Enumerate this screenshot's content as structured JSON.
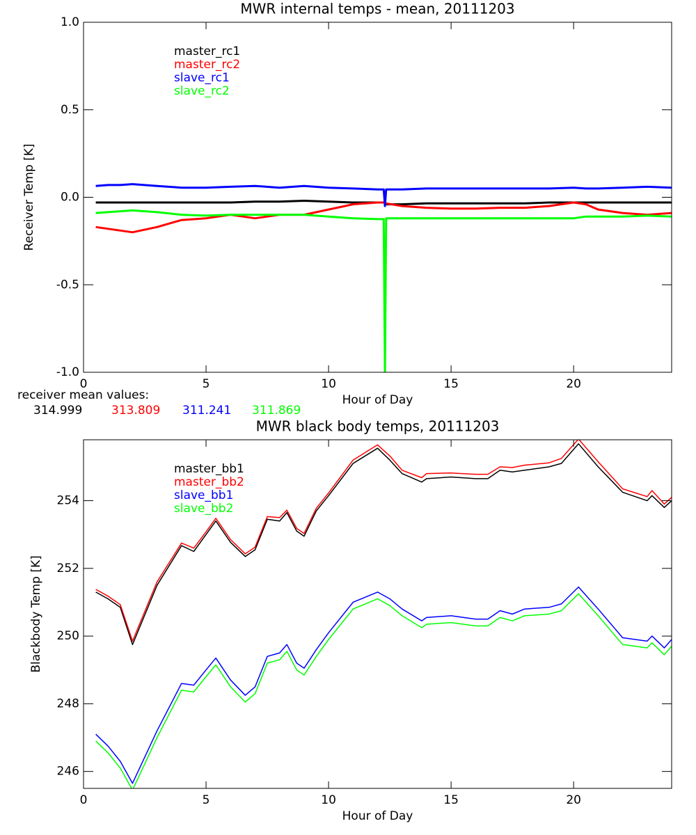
{
  "chart_data": [
    {
      "type": "line",
      "title": "MWR internal temps - mean, 20111203",
      "x_label": "Hour of Day",
      "y_label": "Receiver Temp [K]",
      "xlim": [
        0,
        24
      ],
      "xticks": [
        0,
        5,
        10,
        15,
        20
      ],
      "ylim": [
        -1,
        1
      ],
      "yticks": [
        {
          "value": -1,
          "label": "-1.0"
        },
        {
          "value": -0.5,
          "label": "-0.5"
        },
        {
          "value": 0,
          "label": "0.0"
        },
        {
          "value": 0.5,
          "label": "0.5"
        },
        {
          "value": 1,
          "label": "1.0"
        }
      ],
      "legend": "upper left",
      "x": [
        0.5,
        1,
        1.5,
        2,
        3,
        4,
        5,
        6,
        7,
        8,
        9,
        10,
        11,
        12,
        12.25,
        12.3,
        12.35,
        13,
        14,
        15,
        16,
        17,
        18,
        19,
        20,
        20.5,
        21,
        22,
        23,
        24
      ],
      "series": [
        {
          "name": "master_rc1",
          "color": "#000000",
          "values": [
            -0.03,
            -0.03,
            -0.03,
            -0.03,
            -0.03,
            -0.03,
            -0.03,
            -0.03,
            -0.025,
            -0.025,
            -0.02,
            -0.025,
            -0.03,
            -0.03,
            -0.03,
            -0.03,
            -0.04,
            -0.04,
            -0.035,
            -0.035,
            -0.035,
            -0.035,
            -0.035,
            -0.03,
            -0.03,
            -0.03,
            -0.03,
            -0.03,
            -0.03,
            -0.03
          ]
        },
        {
          "name": "master_rc2",
          "color": "#ff0000",
          "values": [
            -0.17,
            -0.18,
            -0.19,
            -0.2,
            -0.17,
            -0.13,
            -0.12,
            -0.1,
            -0.12,
            -0.1,
            -0.1,
            -0.07,
            -0.04,
            -0.03,
            -0.03,
            -0.03,
            -0.035,
            -0.05,
            -0.06,
            -0.065,
            -0.065,
            -0.06,
            -0.06,
            -0.05,
            -0.03,
            -0.04,
            -0.07,
            -0.09,
            -0.1,
            -0.09
          ]
        },
        {
          "name": "slave_rc1",
          "color": "#0000ff",
          "values": [
            0.065,
            0.07,
            0.07,
            0.075,
            0.065,
            0.055,
            0.055,
            0.06,
            0.065,
            0.055,
            0.065,
            0.055,
            0.05,
            0.045,
            0.045,
            -0.05,
            0.045,
            0.045,
            0.05,
            0.05,
            0.05,
            0.05,
            0.05,
            0.05,
            0.055,
            0.05,
            0.05,
            0.055,
            0.06,
            0.055
          ]
        },
        {
          "name": "slave_rc2",
          "color": "#00ff00",
          "values": [
            -0.09,
            -0.085,
            -0.08,
            -0.075,
            -0.085,
            -0.1,
            -0.105,
            -0.1,
            -0.1,
            -0.1,
            -0.1,
            -0.11,
            -0.12,
            -0.125,
            -0.125,
            -1.0,
            -0.12,
            -0.12,
            -0.12,
            -0.12,
            -0.12,
            -0.12,
            -0.12,
            -0.12,
            -0.12,
            -0.11,
            -0.11,
            -0.11,
            -0.105,
            -0.11
          ]
        }
      ],
      "annotation": "receiver mean values:",
      "mean_values": [
        314.999,
        313.809,
        311.241,
        311.869
      ]
    },
    {
      "type": "line",
      "title": "MWR black body temps, 20111203",
      "x_label": "Hour of Day",
      "y_label": "Blackbody Temp [K]",
      "xlim": [
        0,
        24
      ],
      "xticks": [
        0,
        5,
        10,
        15,
        20
      ],
      "ylim": [
        245.5,
        255.8
      ],
      "yticks": [
        246,
        248,
        250,
        252,
        254
      ],
      "legend": "upper left",
      "x": [
        0.5,
        1,
        1.5,
        2,
        3,
        4,
        4.5,
        5,
        5.4,
        6,
        6.6,
        7,
        7.5,
        8,
        8.3,
        8.7,
        9,
        9.5,
        10,
        11,
        12,
        12.5,
        13,
        13.8,
        14,
        15,
        16,
        16.5,
        17,
        17.5,
        18,
        19,
        19.5,
        20.2,
        21,
        22,
        23,
        23.2,
        23.7,
        24
      ],
      "series": [
        {
          "name": "master_bb1",
          "color": "#000000",
          "values": [
            251.3,
            251.1,
            250.85,
            249.75,
            251.5,
            252.67,
            252.5,
            253.0,
            253.4,
            252.77,
            252.35,
            252.55,
            253.45,
            253.4,
            253.65,
            253.1,
            252.95,
            253.7,
            254.15,
            255.1,
            255.55,
            255.2,
            254.8,
            254.55,
            254.65,
            254.7,
            254.65,
            254.65,
            254.9,
            254.85,
            254.9,
            255.0,
            255.1,
            255.68,
            255.0,
            254.25,
            254.0,
            254.15,
            253.8,
            254.0
          ]
        },
        {
          "name": "master_bb2",
          "color": "#ff0000",
          "values": [
            251.38,
            251.18,
            250.93,
            249.85,
            251.6,
            252.75,
            252.6,
            253.08,
            253.48,
            252.85,
            252.43,
            252.63,
            253.53,
            253.5,
            253.72,
            253.18,
            253.03,
            253.78,
            254.23,
            255.2,
            255.65,
            255.32,
            254.9,
            254.68,
            254.8,
            254.82,
            254.78,
            254.78,
            255.0,
            254.98,
            255.05,
            255.12,
            255.25,
            255.82,
            255.15,
            254.35,
            254.12,
            254.3,
            253.9,
            254.1
          ]
        },
        {
          "name": "slave_bb1",
          "color": "#0000ff",
          "values": [
            247.1,
            246.75,
            246.3,
            245.65,
            247.2,
            248.6,
            248.55,
            249.0,
            249.35,
            248.7,
            248.25,
            248.5,
            249.4,
            249.5,
            249.75,
            249.2,
            249.05,
            249.6,
            250.1,
            251.0,
            251.3,
            251.1,
            250.8,
            250.45,
            250.55,
            250.6,
            250.5,
            250.5,
            250.75,
            250.65,
            250.8,
            250.85,
            250.95,
            251.45,
            250.8,
            249.95,
            249.85,
            250.0,
            249.65,
            249.9
          ]
        },
        {
          "name": "slave_bb2",
          "color": "#00ff00",
          "values": [
            246.9,
            246.55,
            246.1,
            245.45,
            247.0,
            248.4,
            248.35,
            248.8,
            249.15,
            248.5,
            248.05,
            248.3,
            249.2,
            249.3,
            249.55,
            249.0,
            248.85,
            249.4,
            249.9,
            250.8,
            251.1,
            250.9,
            250.6,
            250.25,
            250.35,
            250.4,
            250.3,
            250.3,
            250.55,
            250.45,
            250.6,
            250.65,
            250.75,
            251.25,
            250.6,
            249.75,
            249.65,
            249.8,
            249.45,
            249.7
          ]
        }
      ]
    }
  ]
}
